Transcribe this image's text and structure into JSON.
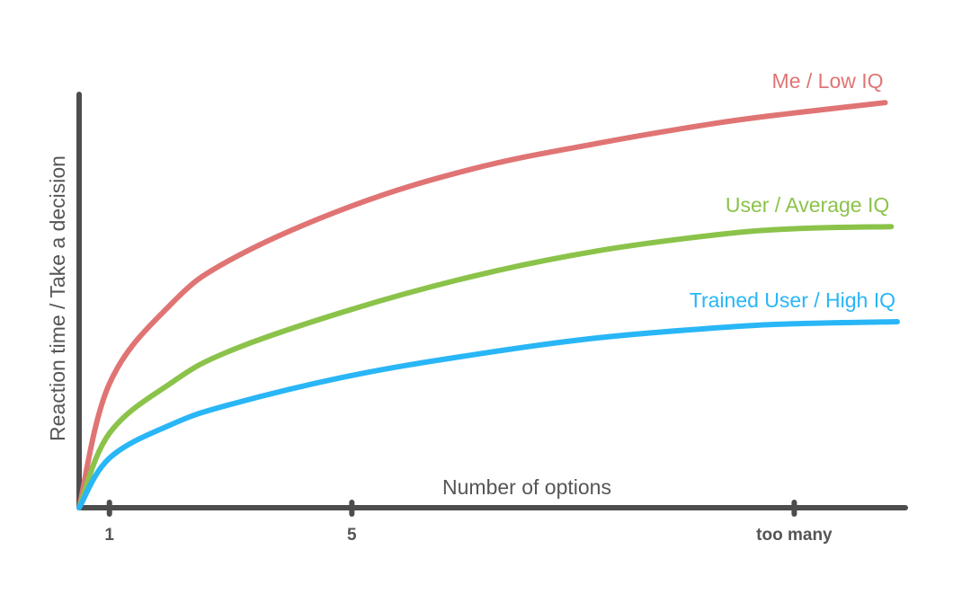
{
  "chart_data": {
    "type": "line",
    "title": "",
    "xlabel": "Number of options",
    "ylabel": "Reaction time / Take a decision",
    "x_ticks": [
      {
        "label": "1",
        "value": 1
      },
      {
        "label": "5",
        "value": 5
      },
      {
        "label": "too many",
        "value": 12.3
      }
    ],
    "xlim": [
      0.5,
      14
    ],
    "ylim": [
      0,
      100
    ],
    "grid": false,
    "legend": "none",
    "series": [
      {
        "name": "Me / Low IQ",
        "color": "#e07474",
        "shape": "log",
        "x": [
          0.5,
          1,
          2,
          3,
          5,
          7,
          9,
          11,
          12.3,
          13.8
        ],
        "y": [
          0,
          30,
          49,
          60,
          73,
          82,
          88,
          93,
          95.5,
          98
        ]
      },
      {
        "name": "User / Average IQ",
        "color": "#8bc34a",
        "shape": "log",
        "x": [
          0.5,
          1,
          2,
          3,
          5,
          7,
          9,
          11,
          12.3,
          13.9
        ],
        "y": [
          0,
          18,
          30,
          38,
          48,
          56,
          62,
          66,
          67.5,
          68
        ]
      },
      {
        "name": "Trained User / High IQ",
        "color": "#29b6f6",
        "shape": "log",
        "x": [
          0.5,
          1,
          2,
          3,
          5,
          7,
          9,
          11,
          12.3,
          14
        ],
        "y": [
          0,
          12,
          20,
          25,
          32,
          37,
          41,
          43.5,
          44.5,
          45
        ]
      }
    ]
  }
}
